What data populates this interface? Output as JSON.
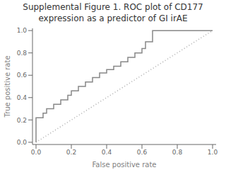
{
  "chart_data": {
    "type": "line",
    "title": "Supplemental Figure 1. ROC plot of CD177\nexpression as a predictor of GI irAE",
    "x_label": "False positive rate",
    "y_label": "True positive rate",
    "xlim": [
      -0.02,
      1.02
    ],
    "ylim": [
      -0.02,
      1.02
    ],
    "xticks": [
      {
        "value": 0,
        "label": "0.0"
      },
      0.2,
      0.4,
      0.6,
      0.8,
      {
        "value": 1,
        "label": "1.0"
      }
    ],
    "yticks": [
      {
        "value": 0,
        "label": "0.0"
      },
      0.2,
      0.4,
      0.6,
      0.8,
      {
        "value": 1,
        "label": "1.0"
      }
    ],
    "grid": false,
    "series": [
      {
        "color": "#aaaaaa",
        "line_style": "dotted",
        "x": [
          0,
          1
        ],
        "values": [
          0,
          1
        ]
      },
      {
        "color": "#888888",
        "line_style": "solid",
        "x": [
          0.0,
          0.0,
          0.0,
          0.04,
          0.04,
          0.06,
          0.06,
          0.1,
          0.1,
          0.14,
          0.14,
          0.18,
          0.18,
          0.2,
          0.2,
          0.24,
          0.24,
          0.28,
          0.28,
          0.32,
          0.32,
          0.36,
          0.36,
          0.4,
          0.4,
          0.44,
          0.44,
          0.48,
          0.48,
          0.52,
          0.52,
          0.56,
          0.56,
          0.6,
          0.6,
          0.62,
          0.62,
          0.66,
          0.66,
          1.0,
          1.0
        ],
        "values": [
          0.0,
          0.1,
          0.22,
          0.22,
          0.26,
          0.26,
          0.3,
          0.3,
          0.34,
          0.34,
          0.38,
          0.38,
          0.42,
          0.42,
          0.46,
          0.46,
          0.5,
          0.5,
          0.54,
          0.54,
          0.58,
          0.58,
          0.62,
          0.62,
          0.65,
          0.65,
          0.68,
          0.68,
          0.72,
          0.72,
          0.76,
          0.76,
          0.8,
          0.8,
          0.84,
          0.84,
          0.9,
          0.9,
          1.0,
          1.0,
          1.0
        ]
      }
    ]
  }
}
